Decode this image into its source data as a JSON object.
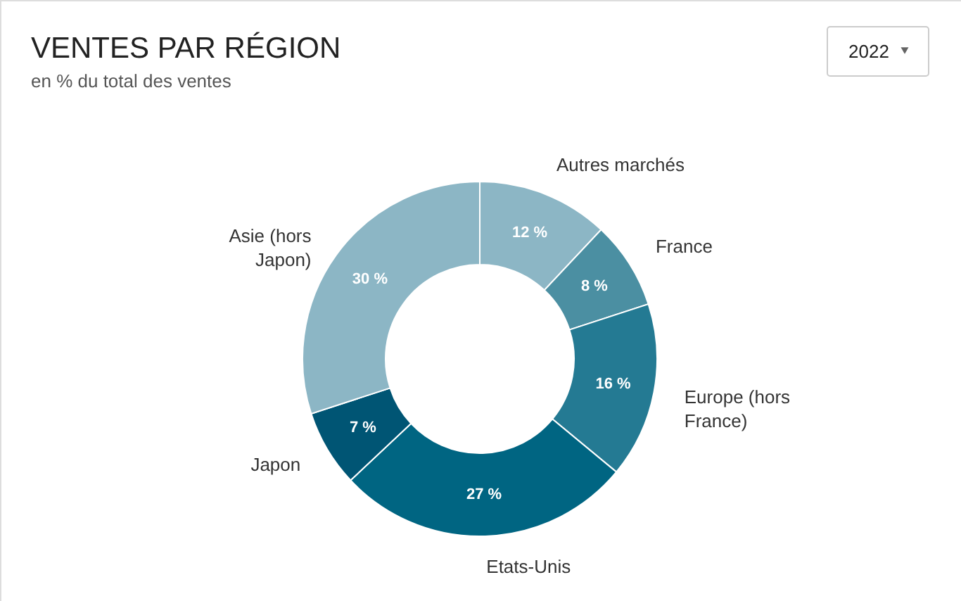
{
  "chart_data": {
    "type": "donut",
    "title": "VENTES PAR RÉGION",
    "subtitle": "en % du total des ventes",
    "categories": [
      "Autres marchés",
      "France",
      "Europe (hors France)",
      "Etats-Unis",
      "Japon",
      "Asie (hors Japon)"
    ],
    "values": [
      12,
      8,
      16,
      27,
      7,
      30
    ],
    "colors": [
      "#8cb6c5",
      "#4b8fa2",
      "#247a93",
      "#006582",
      "#005574",
      "#8cb6c5"
    ],
    "value_labels": [
      "12 %",
      "8 %",
      "16 %",
      "27 %",
      "7 %",
      "30 %"
    ],
    "annotations": [
      "2022"
    ]
  }
}
